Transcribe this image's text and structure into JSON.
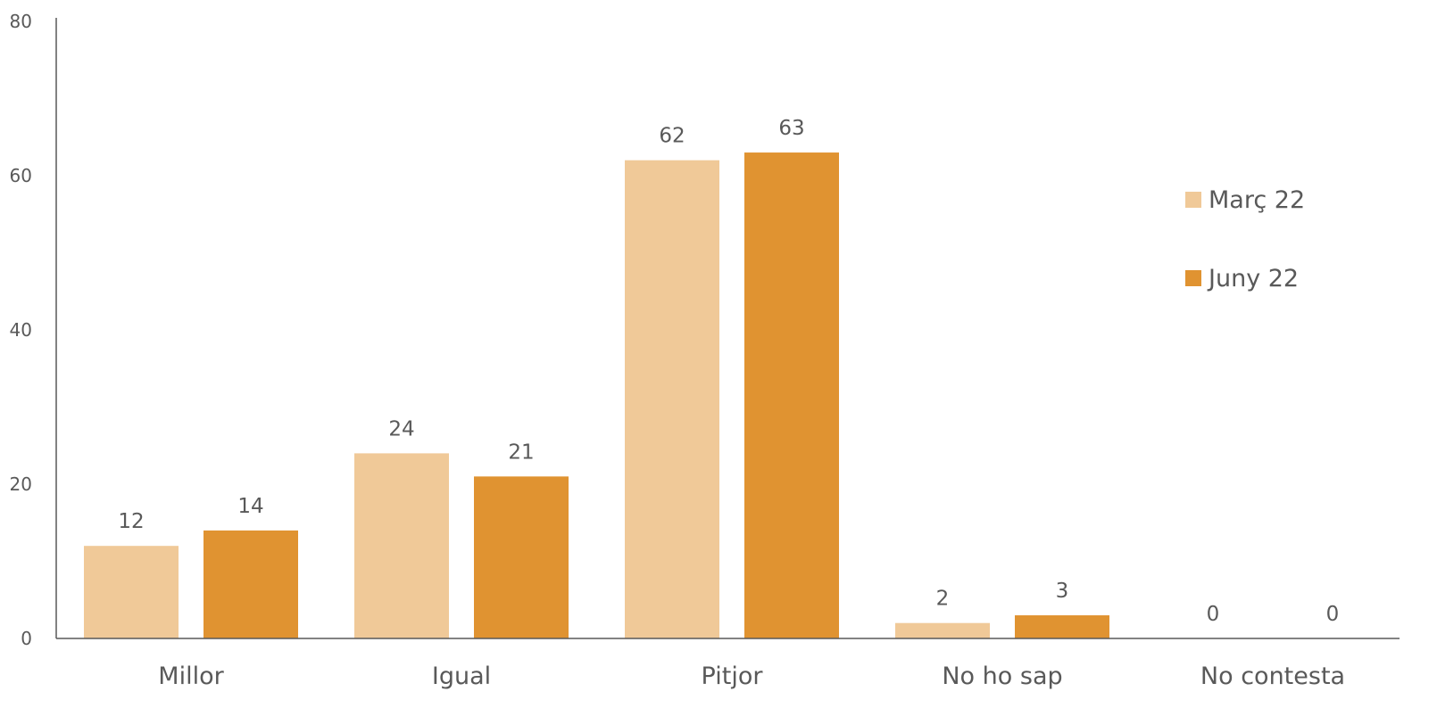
{
  "chart_data": {
    "type": "bar",
    "title": "",
    "xlabel": "",
    "ylabel": "",
    "ylim": [
      0,
      80
    ],
    "yticks": [
      0,
      20,
      40,
      60,
      80
    ],
    "grid": false,
    "legend_position": "right",
    "categories": [
      "Millor",
      "Igual",
      "Pitjor",
      "No ho sap",
      "No contesta"
    ],
    "series": [
      {
        "name": "Març 22",
        "color": "#F0C998",
        "values": [
          12,
          24,
          62,
          2,
          0
        ]
      },
      {
        "name": "Juny 22",
        "color": "#E09331",
        "values": [
          14,
          21,
          63,
          3,
          0
        ]
      }
    ]
  }
}
